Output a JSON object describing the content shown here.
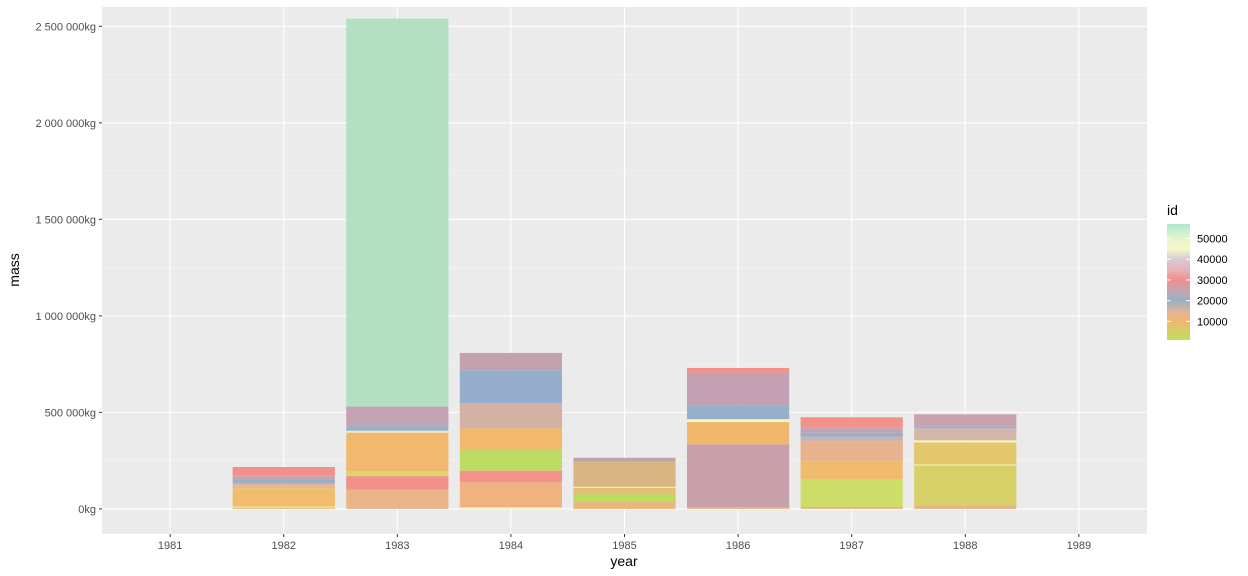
{
  "chart_data": {
    "type": "bar",
    "stacked": true,
    "xlabel": "year",
    "ylabel": "mass",
    "categories": [
      "1981",
      "1982",
      "1983",
      "1984",
      "1985",
      "1986",
      "1987",
      "1988",
      "1989"
    ],
    "ylim": [
      -130000,
      2600000
    ],
    "y_ticks": [
      0,
      500000,
      1000000,
      1500000,
      2000000,
      2500000
    ],
    "y_tick_labels": [
      "0kg",
      "500 000kg",
      "1 000 000kg",
      "1 500 000kg",
      "2 000 000kg",
      "2 500 000kg"
    ],
    "grid": true,
    "legend": {
      "title": "id",
      "position": "right",
      "labels": [
        "50000",
        "40000",
        "30000",
        "20000",
        "10000"
      ],
      "label_values": [
        50000,
        40000,
        30000,
        20000,
        10000
      ],
      "gradient": [
        {
          "value": 57000,
          "color": "#aee8d2"
        },
        {
          "value": 50000,
          "color": "#e4f5cc"
        },
        {
          "value": 45000,
          "color": "#f6f6c6"
        },
        {
          "value": 40000,
          "color": "#d6cbd6"
        },
        {
          "value": 35000,
          "color": "#e6b3b8"
        },
        {
          "value": 30000,
          "color": "#f38f8a"
        },
        {
          "value": 25000,
          "color": "#c6a4b2"
        },
        {
          "value": 20000,
          "color": "#97b0c8"
        },
        {
          "value": 15000,
          "color": "#e2b29a"
        },
        {
          "value": 10000,
          "color": "#f0b870"
        },
        {
          "value": 1000,
          "color": "#bde060"
        }
      ]
    },
    "stacks": [
      {
        "year": "1981",
        "segments": []
      },
      {
        "year": "1982",
        "segments": [
          {
            "value": 8000,
            "color": "#e8c070"
          },
          {
            "value": 4000,
            "color": "#f6f6c6"
          },
          {
            "value": 95000,
            "color": "#efbd6c"
          },
          {
            "value": 10000,
            "color": "#ebb77f"
          },
          {
            "value": 15000,
            "color": "#e2b29a"
          },
          {
            "value": 20000,
            "color": "#97b0c8"
          },
          {
            "value": 20000,
            "color": "#c8a3b2"
          },
          {
            "value": 45000,
            "color": "#f38f8a"
          }
        ]
      },
      {
        "year": "1983",
        "segments": [
          {
            "value": 100000,
            "color": "#e8b688"
          },
          {
            "value": 70000,
            "color": "#f2918a"
          },
          {
            "value": 25000,
            "color": "#dcd46c"
          },
          {
            "value": 200000,
            "color": "#f1b970"
          },
          {
            "value": 10000,
            "color": "#eeeac0"
          },
          {
            "value": 25000,
            "color": "#97b0c8"
          },
          {
            "value": 100000,
            "color": "#c4a3b1"
          },
          {
            "value": 2010000,
            "color": "#b3e0c3"
          }
        ]
      },
      {
        "year": "1984",
        "segments": [
          {
            "value": 8000,
            "color": "#f6f6c6"
          },
          {
            "value": 130000,
            "color": "#edb380"
          },
          {
            "value": 60000,
            "color": "#f2928a"
          },
          {
            "value": 110000,
            "color": "#bddc64"
          },
          {
            "value": 110000,
            "color": "#f1b86e"
          },
          {
            "value": 130000,
            "color": "#d1b2a4"
          },
          {
            "value": 170000,
            "color": "#96aecb"
          },
          {
            "value": 90000,
            "color": "#c4a1af"
          }
        ]
      },
      {
        "year": "1985",
        "segments": [
          {
            "value": 40000,
            "color": "#eab77a"
          },
          {
            "value": 35000,
            "color": "#bcdb62"
          },
          {
            "value": 35000,
            "color": "#e3c070"
          },
          {
            "value": 5000,
            "color": "#f6f6c6"
          },
          {
            "value": 130000,
            "color": "#d9b582"
          },
          {
            "value": 20000,
            "color": "#bca4ad"
          }
        ]
      },
      {
        "year": "1986",
        "segments": [
          {
            "value": 10000,
            "color": "#e6b486"
          },
          {
            "value": 325000,
            "color": "#c8a0aa"
          },
          {
            "value": 115000,
            "color": "#f1b86c"
          },
          {
            "value": 15000,
            "color": "#f6f6c6"
          },
          {
            "value": 70000,
            "color": "#97b0c8"
          },
          {
            "value": 170000,
            "color": "#c2a2b2"
          },
          {
            "value": 25000,
            "color": "#f3908a"
          }
        ]
      },
      {
        "year": "1987",
        "segments": [
          {
            "value": 10000,
            "color": "#e6b486"
          },
          {
            "value": 145000,
            "color": "#cedc6a"
          },
          {
            "value": 95000,
            "color": "#f1bb6e"
          },
          {
            "value": 100000,
            "color": "#e6b38e"
          },
          {
            "value": 25000,
            "color": "#c8b3b4"
          },
          {
            "value": 20000,
            "color": "#97b0c8"
          },
          {
            "value": 25000,
            "color": "#c5a3b2"
          },
          {
            "value": 55000,
            "color": "#f3928a"
          }
        ]
      },
      {
        "year": "1988",
        "segments": [
          {
            "value": 15000,
            "color": "#e2b48a"
          },
          {
            "value": 210000,
            "color": "#d8d068"
          },
          {
            "value": 5000,
            "color": "#f6f6c6"
          },
          {
            "value": 115000,
            "color": "#e2c76c"
          },
          {
            "value": 10000,
            "color": "#f6f6c6"
          },
          {
            "value": 60000,
            "color": "#d2b6a6"
          },
          {
            "value": 15000,
            "color": "#b4adbe"
          },
          {
            "value": 60000,
            "color": "#c7a2af"
          }
        ]
      },
      {
        "year": "1989",
        "segments": []
      }
    ]
  }
}
